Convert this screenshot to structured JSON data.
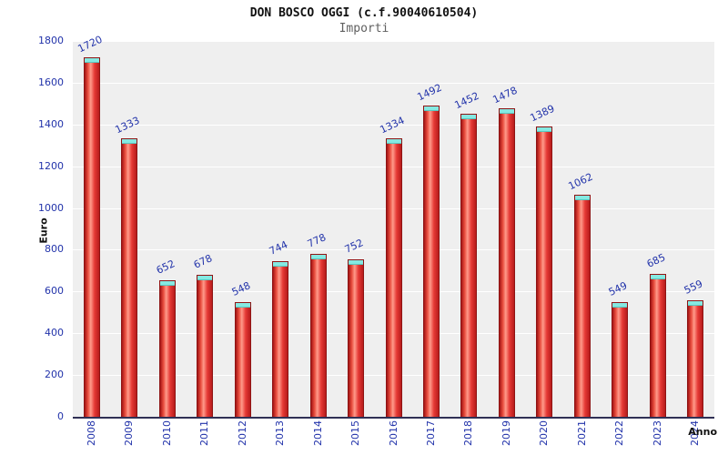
{
  "chart_data": {
    "type": "bar",
    "title": "DON BOSCO OGGI (c.f.90040610504)",
    "subtitle": "Importi",
    "xlabel": "Anno",
    "ylabel": "Euro",
    "categories": [
      "2008",
      "2009",
      "2010",
      "2011",
      "2012",
      "2013",
      "2014",
      "2015",
      "2016",
      "2017",
      "2018",
      "2019",
      "2020",
      "2021",
      "2022",
      "2023",
      "2024"
    ],
    "values": [
      1720,
      1333,
      652,
      678,
      548,
      744,
      778,
      752,
      1334,
      1492,
      1452,
      1478,
      1389,
      1062,
      549,
      685,
      559
    ],
    "ylim": [
      0,
      1800
    ],
    "ytick_step": 200,
    "grid": true,
    "legend": "none",
    "colors": {
      "bar_fill": "#e84b3c",
      "bar_highlight": "#ff9a8a",
      "bar_border": "#8e1414",
      "bar_cap": "#85e9e2",
      "axis_label_blue": "#2233aa",
      "plot_background": "#efefef",
      "gridline": "#ffffff",
      "title_color": "#111111",
      "subtitle_color": "#606060"
    }
  }
}
